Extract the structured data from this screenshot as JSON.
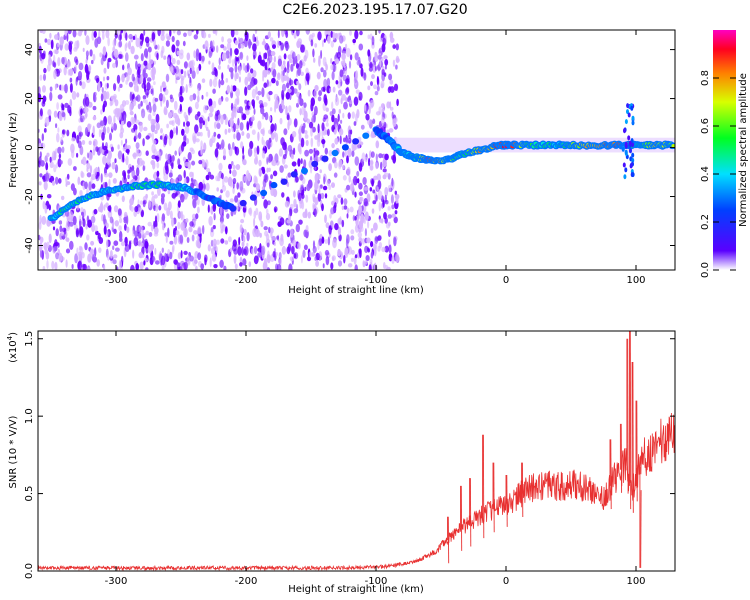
{
  "title": "C2E6.2023.195.17.07.G20",
  "chart_data": [
    {
      "type": "heatmap",
      "xlabel": "Height of straight line (km)",
      "ylabel": "Frequency (Hz)",
      "xlim": [
        -360,
        130
      ],
      "ylim": [
        -50,
        48
      ],
      "xticks": [
        -300,
        -200,
        -100,
        0,
        100
      ],
      "yticks": [
        -40,
        -20,
        0,
        20,
        40
      ],
      "noise_region_x": [
        -360,
        -83
      ],
      "colorbar": {
        "label": "Normalized spectral amplitude",
        "range": [
          0,
          1
        ],
        "ticks": [
          "0.0",
          "0.2",
          "0.4",
          "0.6",
          "0.8"
        ],
        "tick_values": [
          0.0,
          0.2,
          0.4,
          0.6,
          0.8
        ]
      },
      "ridge": [
        {
          "x": -350,
          "y": -29,
          "a": 0.45
        },
        {
          "x": -330,
          "y": -22,
          "a": 0.5
        },
        {
          "x": -310,
          "y": -18,
          "a": 0.4
        },
        {
          "x": -290,
          "y": -16,
          "a": 0.45
        },
        {
          "x": -270,
          "y": -15,
          "a": 0.5
        },
        {
          "x": -250,
          "y": -16,
          "a": 0.4
        },
        {
          "x": -230,
          "y": -20,
          "a": 0.25
        },
        {
          "x": -210,
          "y": -25,
          "a": 0.2
        },
        {
          "x": -100,
          "y": 7,
          "a": 0.25
        },
        {
          "x": -90,
          "y": 3,
          "a": 0.3
        },
        {
          "x": -80,
          "y": -2,
          "a": 0.4
        },
        {
          "x": -70,
          "y": -4,
          "a": 0.45
        },
        {
          "x": -60,
          "y": -5,
          "a": 0.9
        },
        {
          "x": -45,
          "y": -5,
          "a": 0.7
        },
        {
          "x": -35,
          "y": -3,
          "a": 0.5
        },
        {
          "x": -20,
          "y": -1,
          "a": 0.75
        },
        {
          "x": -5,
          "y": 1,
          "a": 0.85
        },
        {
          "x": 5,
          "y": 1,
          "a": 0.9
        },
        {
          "x": 20,
          "y": 1,
          "a": 0.5
        },
        {
          "x": 40,
          "y": 1,
          "a": 0.45
        },
        {
          "x": 55,
          "y": 1,
          "a": 0.7
        },
        {
          "x": 75,
          "y": 1,
          "a": 0.8
        },
        {
          "x": 90,
          "y": 1,
          "a": 0.9
        },
        {
          "x": 100,
          "y": 1,
          "a": 0.5
        },
        {
          "x": 115,
          "y": 1,
          "a": 0.7
        },
        {
          "x": 130,
          "y": 1,
          "a": 0.6
        }
      ]
    },
    {
      "type": "line",
      "xlabel": "Height of straight line (km)",
      "ylabel": "SNR (10 * V/V)",
      "y_multiplier": "(x10",
      "y_multiplier_exp": "4",
      "y_multiplier_close": ")",
      "xlim": [
        -360,
        130
      ],
      "ylim": [
        0,
        1.55
      ],
      "xticks": [
        -300,
        -200,
        -100,
        0,
        100
      ],
      "yticks": [
        "0.0",
        "0.5",
        "1.0",
        "1.5"
      ],
      "ytick_values": [
        0.0,
        0.5,
        1.0,
        1.5
      ],
      "color": "#e83030",
      "series": [
        {
          "x": [
            -360,
            -300,
            -200,
            -120,
            -90,
            -70,
            -55,
            -45,
            -35,
            -25,
            -15,
            -5,
            5,
            15,
            25,
            35,
            45,
            55,
            65,
            75,
            85,
            92,
            96,
            100,
            105,
            115,
            125,
            130
          ],
          "values": [
            0.02,
            0.02,
            0.02,
            0.02,
            0.03,
            0.06,
            0.12,
            0.2,
            0.28,
            0.32,
            0.38,
            0.42,
            0.45,
            0.52,
            0.55,
            0.55,
            0.54,
            0.56,
            0.52,
            0.48,
            0.62,
            0.7,
            0.5,
            0.6,
            0.72,
            0.8,
            0.88,
            0.92
          ]
        }
      ],
      "spikes": [
        {
          "x": -45,
          "y": 0.35
        },
        {
          "x": -35,
          "y": 0.55
        },
        {
          "x": -28,
          "y": 0.6
        },
        {
          "x": -18,
          "y": 0.88
        },
        {
          "x": -10,
          "y": 0.7
        },
        {
          "x": 0,
          "y": 0.62
        },
        {
          "x": 12,
          "y": 0.7
        },
        {
          "x": 80,
          "y": 0.85
        },
        {
          "x": 88,
          "y": 0.95
        },
        {
          "x": 93,
          "y": 1.5
        },
        {
          "x": 95,
          "y": 1.55
        },
        {
          "x": 97,
          "y": 1.35
        },
        {
          "x": 100,
          "y": 1.1
        },
        {
          "x": 103,
          "y": 0.02
        }
      ]
    }
  ]
}
